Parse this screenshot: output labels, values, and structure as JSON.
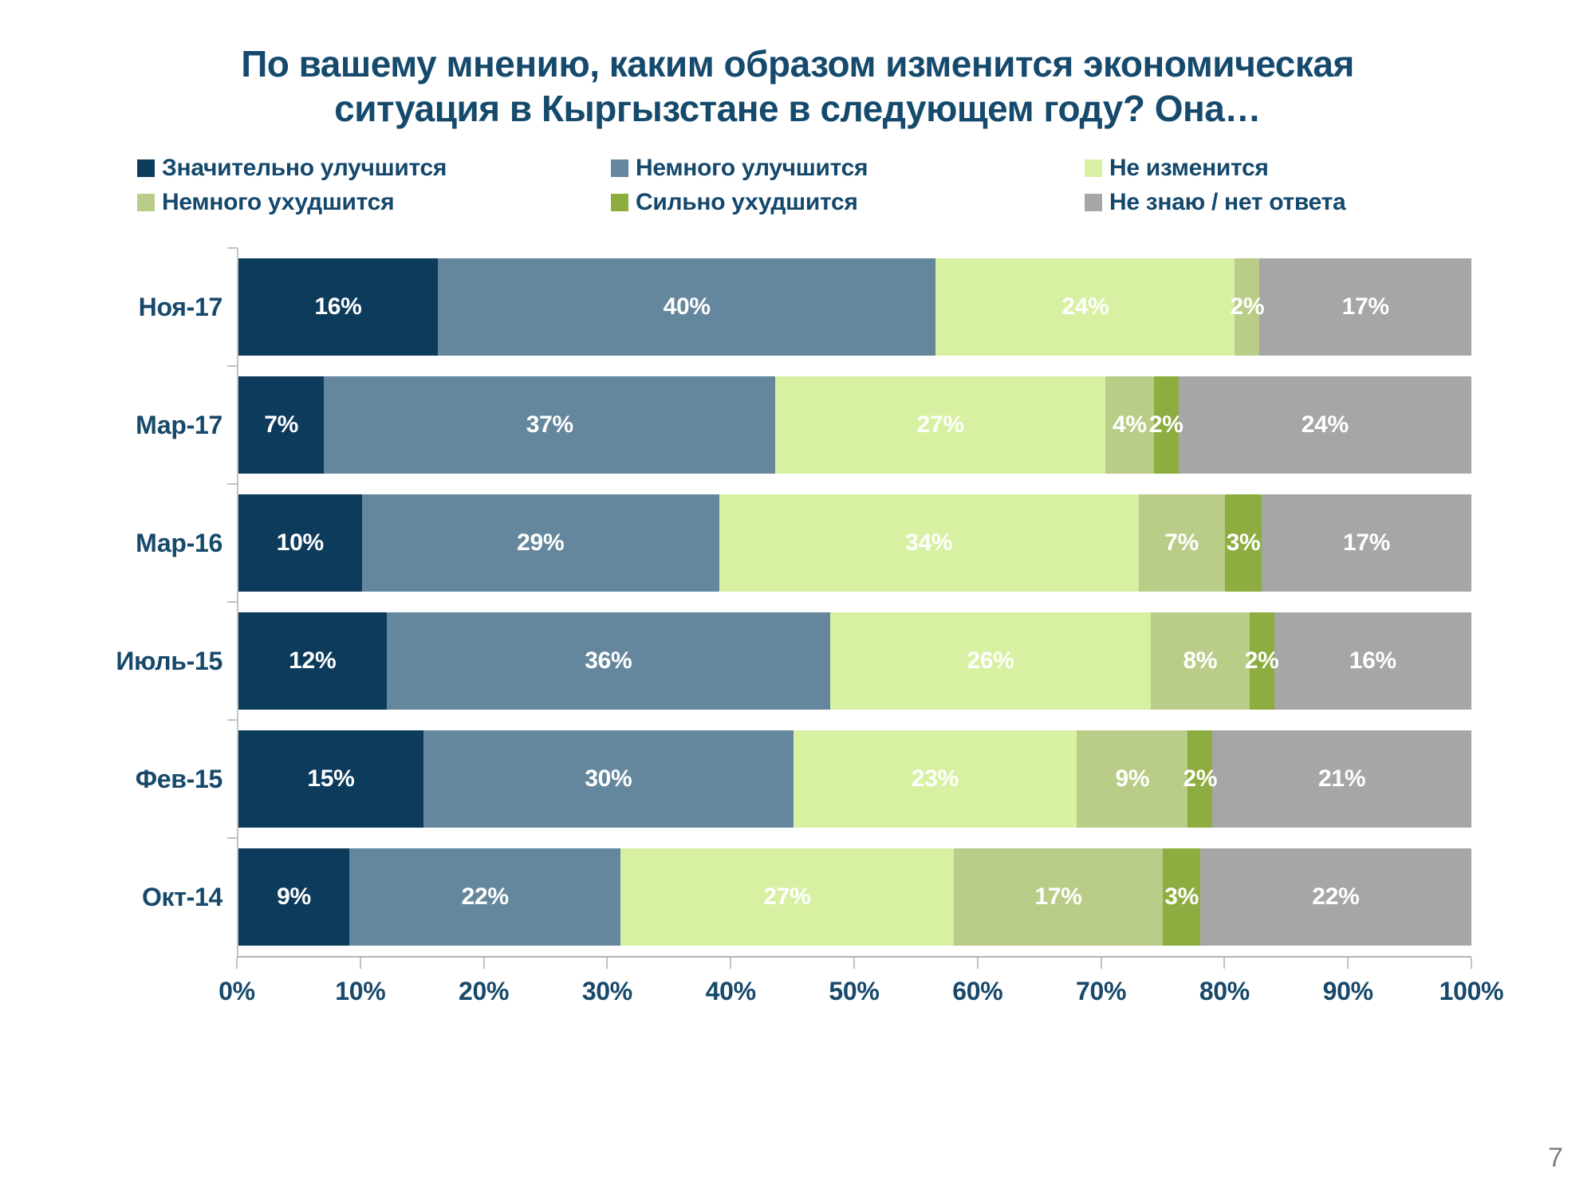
{
  "title": "По вашему мнению, каким образом изменится экономическая ситуация в Кыргызстане в следующем году? Она…",
  "page_number": "7",
  "colors": {
    "title_text": "#154a6d",
    "axis_text": "#17496b",
    "axis_line": "#b3b3b3",
    "value_label_text": "#ffffff",
    "page_number_text": "#7f7f7f"
  },
  "chart_data": {
    "type": "bar",
    "stacked": true,
    "orientation": "horizontal",
    "title": "По вашему мнению, каким образом изменится экономическая ситуация в Кыргызстане в следующем году? Она…",
    "categories": [
      "Ноя-17",
      "Мар-17",
      "Мар-16",
      "Июль-15",
      "Фев-15",
      "Окт-14"
    ],
    "series": [
      {
        "name": "Значительно улучшится",
        "color": "#0d3b5c",
        "values": [
          16,
          7,
          10,
          12,
          15,
          9
        ]
      },
      {
        "name": "Немного улучшится",
        "color": "#65879d",
        "values": [
          40,
          37,
          29,
          36,
          30,
          22
        ]
      },
      {
        "name": "Не изменится",
        "color": "#d7f0a2",
        "values": [
          24,
          27,
          34,
          26,
          23,
          27
        ]
      },
      {
        "name": "Немного ухудшится",
        "color": "#b9cd89",
        "values": [
          2,
          4,
          7,
          8,
          9,
          17
        ]
      },
      {
        "name": "Сильно ухудшится",
        "color": "#8ead40",
        "values": [
          0,
          2,
          3,
          2,
          2,
          3
        ]
      },
      {
        "name": "Не знаю / нет ответа",
        "color": "#a6a6a6",
        "values": [
          17,
          24,
          17,
          16,
          21,
          22
        ]
      }
    ],
    "value_suffix": "%",
    "min_label_value": 2,
    "xlim": [
      0,
      100
    ],
    "x_ticks": [
      "0%",
      "10%",
      "20%",
      "30%",
      "40%",
      "50%",
      "60%",
      "70%",
      "80%",
      "90%",
      "100%"
    ],
    "legend_position": "top",
    "grid": false
  }
}
